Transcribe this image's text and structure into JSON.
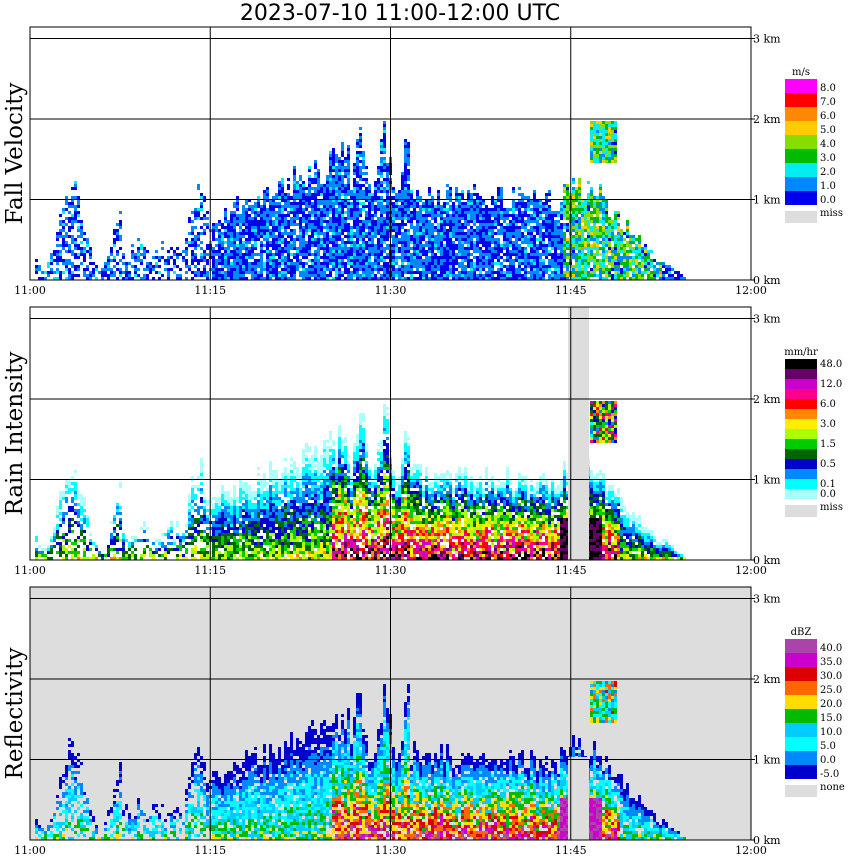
{
  "title": "2023-07-10  11:00-12:00 UTC",
  "chart_data": [
    {
      "type": "heatmap",
      "panel": "Fall Velocity",
      "x_ticks": [
        "11:00",
        "11:15",
        "11:30",
        "11:45",
        "12:00"
      ],
      "y_ticks": [
        "0 km",
        "1 km",
        "2 km",
        "3 km"
      ],
      "legend_title": "m/s",
      "legend": [
        {
          "label": "8.0",
          "color": "#ff00ff"
        },
        {
          "label": "7.0",
          "color": "#ff0000"
        },
        {
          "label": "6.0",
          "color": "#ff8800"
        },
        {
          "label": "5.0",
          "color": "#ffcc00"
        },
        {
          "label": "4.0",
          "color": "#88dd00"
        },
        {
          "label": "3.0",
          "color": "#00bb00"
        },
        {
          "label": "2.0",
          "color": "#00eeee"
        },
        {
          "label": "1.0",
          "color": "#0088ff"
        },
        {
          "label": "0.0",
          "color": "#0000ee"
        }
      ],
      "miss_label": "miss",
      "miss_color": "#dddddd",
      "background": "#ffffff"
    },
    {
      "type": "heatmap",
      "panel": "Rain Intensity",
      "x_ticks": [
        "11:00",
        "11:15",
        "11:30",
        "11:45",
        "12:00"
      ],
      "y_ticks": [
        "0 km",
        "1 km",
        "2 km",
        "3 km"
      ],
      "legend_title": "mm/hr",
      "legend": [
        {
          "label": "48.0",
          "color": "#000000"
        },
        {
          "label": "",
          "color": "#660066"
        },
        {
          "label": "12.0",
          "color": "#cc00cc"
        },
        {
          "label": "",
          "color": "#ff0088"
        },
        {
          "label": "6.0",
          "color": "#ff0000"
        },
        {
          "label": "",
          "color": "#ff8800"
        },
        {
          "label": "3.0",
          "color": "#ffee00"
        },
        {
          "label": "",
          "color": "#aaff00"
        },
        {
          "label": "1.5",
          "color": "#00cc00"
        },
        {
          "label": "",
          "color": "#006600"
        },
        {
          "label": "0.5",
          "color": "#0000cc"
        },
        {
          "label": "",
          "color": "#0088ff"
        },
        {
          "label": "0.1",
          "color": "#00ffff"
        },
        {
          "label": "0.0",
          "color": "#aaffff"
        }
      ],
      "miss_label": "miss",
      "miss_color": "#dddddd",
      "background": "#ffffff"
    },
    {
      "type": "heatmap",
      "panel": "Reflectivity",
      "x_ticks": [
        "11:00",
        "11:15",
        "11:30",
        "11:45",
        "12:00"
      ],
      "y_ticks": [
        "0 km",
        "1 km",
        "2 km",
        "3 km"
      ],
      "legend_title": "dBZ",
      "legend": [
        {
          "label": "40.0",
          "color": "#aa44aa"
        },
        {
          "label": "35.0",
          "color": "#cc00cc"
        },
        {
          "label": "30.0",
          "color": "#dd0000"
        },
        {
          "label": "25.0",
          "color": "#ff6600"
        },
        {
          "label": "20.0",
          "color": "#ffdd00"
        },
        {
          "label": "15.0",
          "color": "#00bb00"
        },
        {
          "label": "10.0",
          "color": "#00ccff"
        },
        {
          "label": "5.0",
          "color": "#00ffff"
        },
        {
          "label": "0.0",
          "color": "#0088ff"
        },
        {
          "label": "-5.0",
          "color": "#0000cc"
        }
      ],
      "miss_label": "none",
      "miss_color": "#dddddd",
      "background": "#dddddd"
    }
  ]
}
